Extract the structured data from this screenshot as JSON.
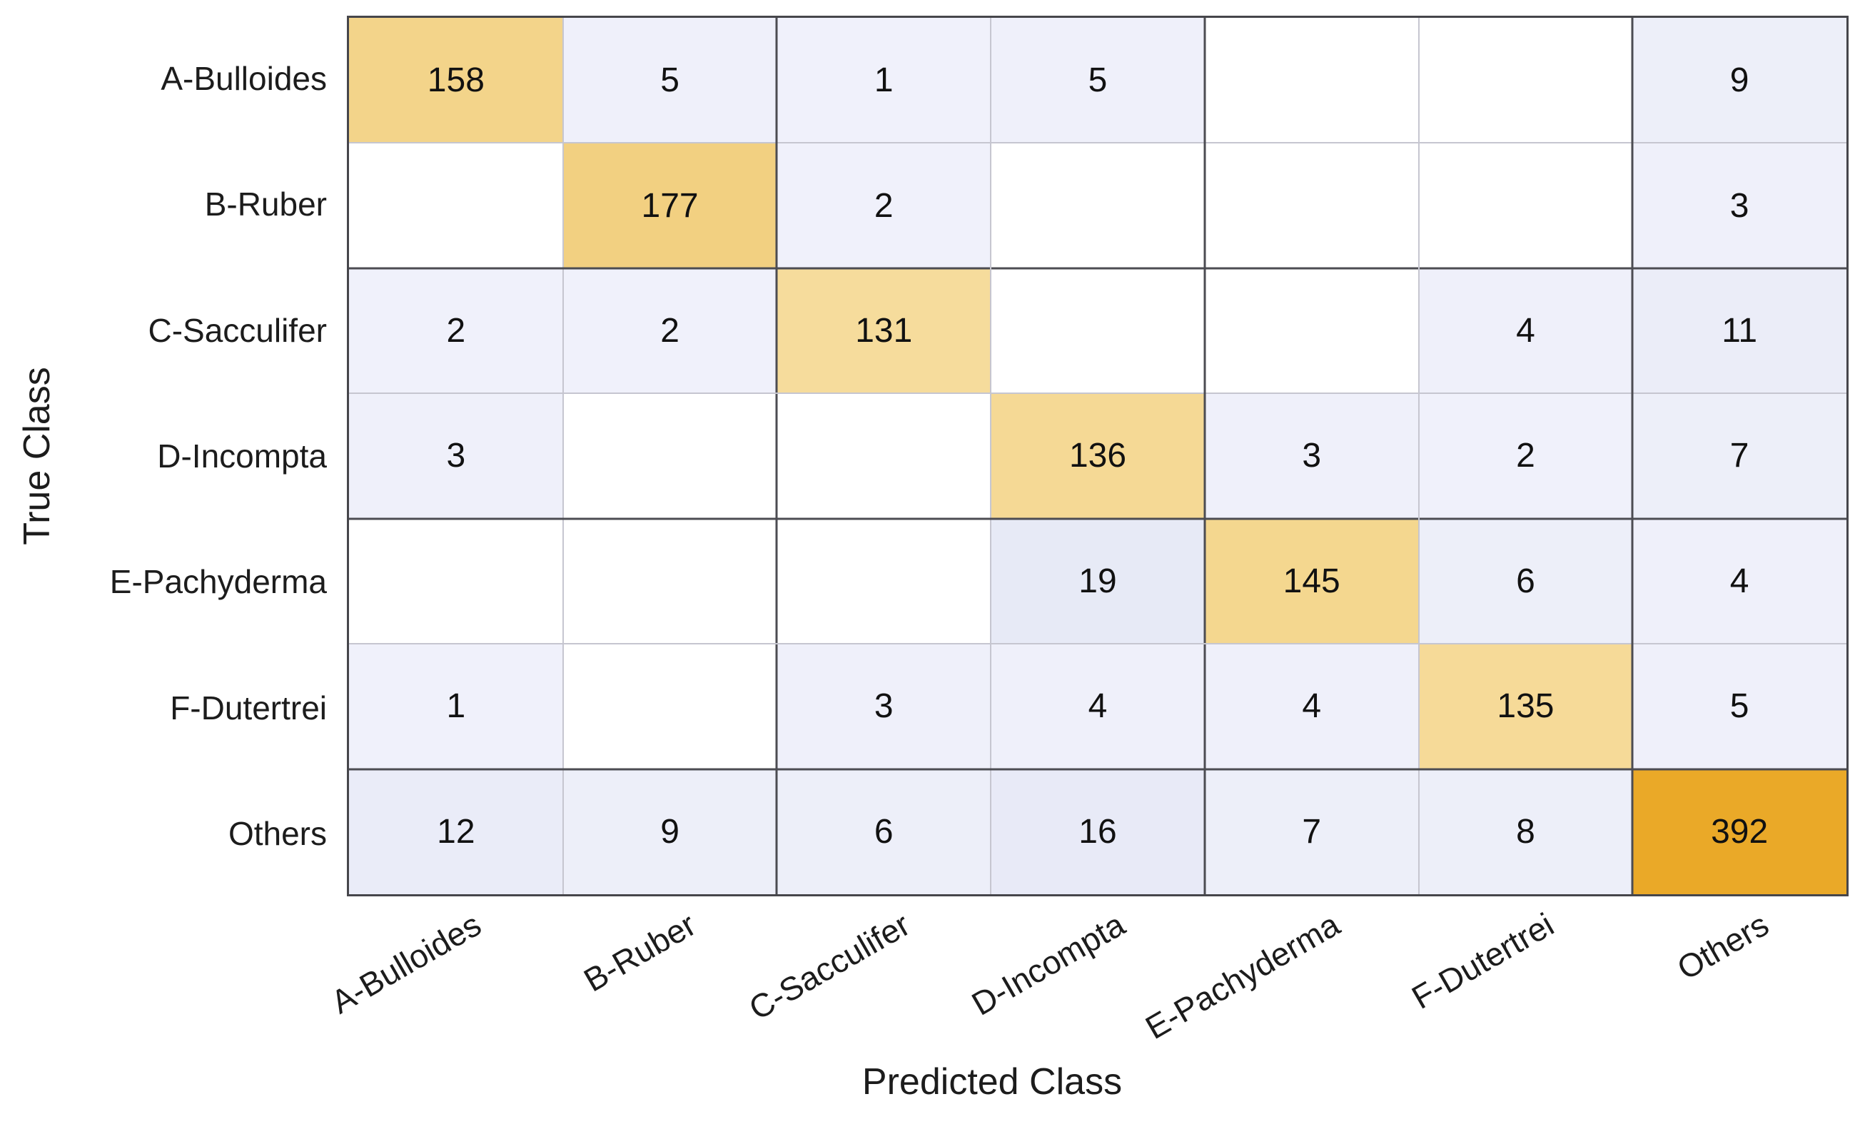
{
  "chart_data": {
    "type": "heatmap",
    "subtype": "confusion-matrix",
    "title": "",
    "xlabel": "Predicted Class",
    "ylabel": "True Class",
    "classes": [
      "A-Bulloides",
      "B-Ruber",
      "C-Sacculifer",
      "D-Incompta",
      "E-Pachyderma",
      "F-Dutertrei",
      "Others"
    ],
    "matrix": [
      [
        158,
        5,
        1,
        5,
        null,
        null,
        9
      ],
      [
        null,
        177,
        2,
        null,
        null,
        null,
        3
      ],
      [
        2,
        2,
        131,
        null,
        null,
        4,
        11
      ],
      [
        3,
        null,
        null,
        136,
        3,
        2,
        7
      ],
      [
        null,
        null,
        null,
        19,
        145,
        6,
        4
      ],
      [
        1,
        null,
        3,
        4,
        4,
        135,
        5
      ],
      [
        12,
        9,
        6,
        16,
        7,
        8,
        392
      ]
    ],
    "cell_colors": [
      [
        "#F3D48A",
        "#EFF0FA",
        "#F0F1FB",
        "#EFF0FA",
        null,
        null,
        "#EDEFF9"
      ],
      [
        null,
        "#F2D081",
        "#F0F1FB",
        null,
        null,
        null,
        "#EFF0FA"
      ],
      [
        "#F0F1FB",
        "#F0F1FB",
        "#F6DC9C",
        null,
        null,
        "#EFF0FA",
        "#EBEDF8"
      ],
      [
        "#EFF0FA",
        null,
        null,
        "#F5D995",
        "#EFF0FA",
        "#F0F1FB",
        "#EDEFF9"
      ],
      [
        null,
        null,
        null,
        "#E7EAF6",
        "#F4D78F",
        "#EDEFF9",
        "#EFF0FA"
      ],
      [
        "#F0F1FB",
        null,
        "#EFF0FA",
        "#EFF0FA",
        "#EFF0FA",
        "#F6DA98",
        "#EFF0FA"
      ],
      [
        "#EAECF8",
        "#EDEFF9",
        "#EDEFF9",
        "#E8EAF7",
        "#EDEFF9",
        "#EDEFF9",
        "#EAA928"
      ]
    ],
    "style": {
      "diagonal_color_low": "#F6DC9C",
      "diagonal_color_high": "#EAA928",
      "offdiagonal_color": "#EFF0FA",
      "empty_color": "#FFFFFF",
      "major_line_color": "#4C4C52",
      "minor_line_color": "#C6C6D0",
      "text_color": "#111111"
    },
    "grid": "on",
    "legend_position": "none",
    "x_tick_rotation_deg": -30,
    "axis_ranges": {
      "columns": 7,
      "rows": 7
    }
  }
}
